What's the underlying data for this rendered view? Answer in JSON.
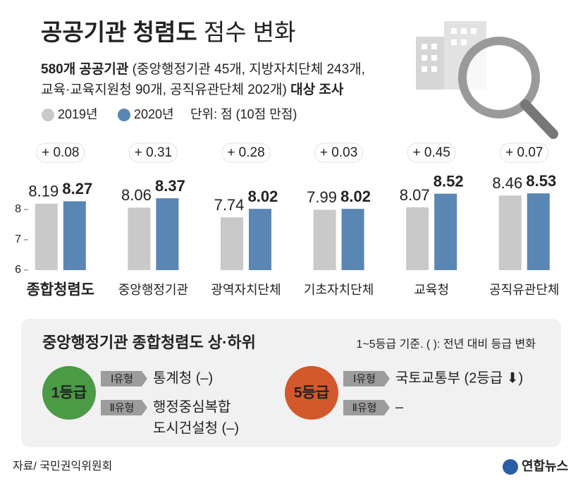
{
  "header": {
    "title": "공공기관 청렴도",
    "title_suffix": "점수 변화",
    "subtitle": [
      [
        "580개 공공기관",
        "(중앙행정기관 45개, 지방자치단체 243개,"
      ],
      [
        "교육·교육지원청 90개, 공직유관단체 202개)",
        "대상 조사"
      ]
    ],
    "unit": "단위: 점 (10점 만점)"
  },
  "chart_data": {
    "type": "bar",
    "categories": [
      "종합청렴도",
      "중앙행정기관",
      "광역자치단체",
      "기초자치단체",
      "교육청",
      "공직유관단체"
    ],
    "series": [
      {
        "name": "2019년",
        "color": "#c9c9c9",
        "values": [
          8.19,
          8.06,
          7.74,
          7.99,
          8.07,
          8.46
        ]
      },
      {
        "name": "2020년",
        "color": "#5a86b4",
        "values": [
          8.27,
          8.37,
          8.02,
          8.02,
          8.52,
          8.53
        ]
      }
    ],
    "changes": [
      "+ 0.08",
      "+ 0.31",
      "+ 0.28",
      "+ 0.03",
      "+ 0.45",
      "+ 0.07"
    ],
    "ylim": [
      6,
      9
    ],
    "yticks": [
      6,
      7,
      8
    ],
    "grid": false
  },
  "ranking": {
    "title": "중앙행정기관 종합청렴도 상·하위",
    "note": "1~5등급 기준. ( ): 전년 대비 등급 변화",
    "groups": [
      {
        "grade": "1등급",
        "color": "#4b9a45",
        "rows": [
          {
            "type": "Ⅰ유형",
            "lines": [
              "통계청 (–)"
            ]
          },
          {
            "type": "Ⅱ유형",
            "lines": [
              "행정중심복합",
              "도시건설청 (–)"
            ]
          }
        ]
      },
      {
        "grade": "5등급",
        "color": "#d3582b",
        "rows": [
          {
            "type": "Ⅰ유형",
            "lines": [
              "국토교통부 (2등급 ⬇)"
            ]
          },
          {
            "type": "Ⅱ유형",
            "lines": [
              "–"
            ]
          }
        ]
      }
    ]
  },
  "source": "자료/ 국민권익위원회",
  "logo": "연합뉴스"
}
